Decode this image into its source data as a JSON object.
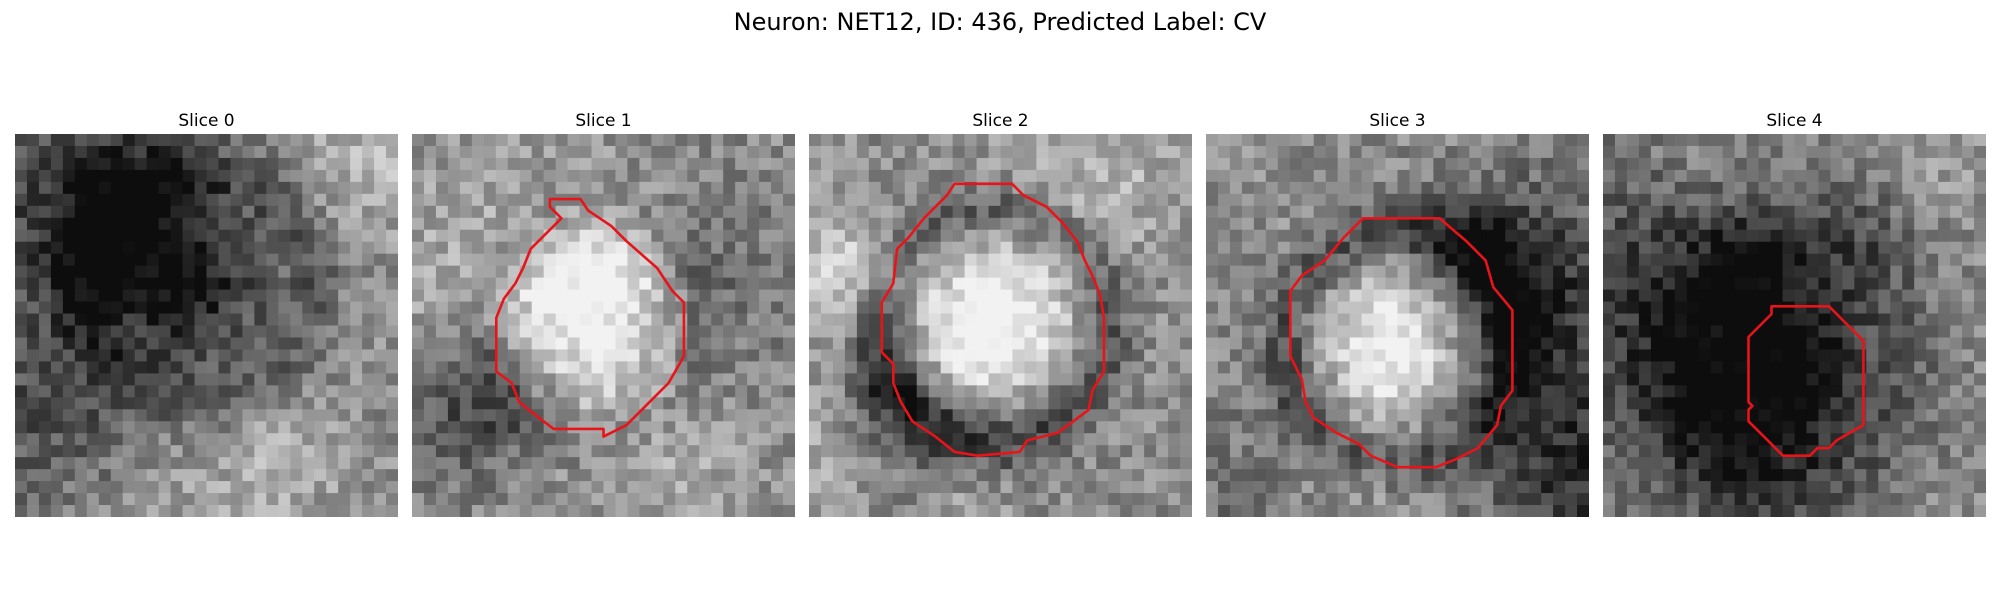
{
  "figure": {
    "title": "Neuron: NET12, ID: 436, Predicted Label: CV"
  },
  "colors": {
    "contour": "#e8141a"
  },
  "slices": [
    {
      "title": "Slice 0",
      "seed": 11,
      "center": [
        0.48,
        0.4
      ],
      "contrast": -0.35,
      "contour": []
    },
    {
      "title": "Slice 1",
      "seed": 23,
      "center": [
        0.47,
        0.5
      ],
      "contrast": 0.25,
      "contour": [
        [
          0.36,
          0.17
        ],
        [
          0.44,
          0.17
        ],
        [
          0.46,
          0.2
        ],
        [
          0.52,
          0.24
        ],
        [
          0.56,
          0.28
        ],
        [
          0.64,
          0.35
        ],
        [
          0.68,
          0.41
        ],
        [
          0.71,
          0.44
        ],
        [
          0.71,
          0.58
        ],
        [
          0.67,
          0.65
        ],
        [
          0.62,
          0.7
        ],
        [
          0.56,
          0.76
        ],
        [
          0.5,
          0.79
        ],
        [
          0.5,
          0.77
        ],
        [
          0.37,
          0.77
        ],
        [
          0.33,
          0.74
        ],
        [
          0.28,
          0.7
        ],
        [
          0.26,
          0.65
        ],
        [
          0.22,
          0.62
        ],
        [
          0.22,
          0.48
        ],
        [
          0.24,
          0.43
        ],
        [
          0.27,
          0.39
        ],
        [
          0.28,
          0.37
        ],
        [
          0.29,
          0.35
        ],
        [
          0.31,
          0.3
        ],
        [
          0.34,
          0.27
        ],
        [
          0.39,
          0.22
        ],
        [
          0.36,
          0.19
        ]
      ]
    },
    {
      "title": "Slice 2",
      "seed": 37,
      "center": [
        0.48,
        0.5
      ],
      "contrast": 0.55,
      "contour": [
        [
          0.38,
          0.13
        ],
        [
          0.53,
          0.13
        ],
        [
          0.56,
          0.16
        ],
        [
          0.62,
          0.19
        ],
        [
          0.66,
          0.23
        ],
        [
          0.7,
          0.28
        ],
        [
          0.72,
          0.33
        ],
        [
          0.74,
          0.37
        ],
        [
          0.76,
          0.42
        ],
        [
          0.77,
          0.48
        ],
        [
          0.77,
          0.62
        ],
        [
          0.74,
          0.67
        ],
        [
          0.73,
          0.72
        ],
        [
          0.69,
          0.75
        ],
        [
          0.65,
          0.78
        ],
        [
          0.57,
          0.8
        ],
        [
          0.55,
          0.83
        ],
        [
          0.44,
          0.84
        ],
        [
          0.38,
          0.83
        ],
        [
          0.33,
          0.79
        ],
        [
          0.27,
          0.75
        ],
        [
          0.24,
          0.7
        ],
        [
          0.22,
          0.65
        ],
        [
          0.22,
          0.6
        ],
        [
          0.19,
          0.57
        ],
        [
          0.19,
          0.44
        ],
        [
          0.22,
          0.39
        ],
        [
          0.23,
          0.3
        ],
        [
          0.26,
          0.27
        ],
        [
          0.3,
          0.22
        ],
        [
          0.33,
          0.19
        ],
        [
          0.36,
          0.16
        ]
      ]
    },
    {
      "title": "Slice 3",
      "seed": 41,
      "center": [
        0.51,
        0.55
      ],
      "contrast": 0.55,
      "contour": [
        [
          0.41,
          0.22
        ],
        [
          0.61,
          0.22
        ],
        [
          0.68,
          0.28
        ],
        [
          0.73,
          0.33
        ],
        [
          0.75,
          0.4
        ],
        [
          0.8,
          0.46
        ],
        [
          0.8,
          0.67
        ],
        [
          0.77,
          0.71
        ],
        [
          0.76,
          0.76
        ],
        [
          0.71,
          0.82
        ],
        [
          0.65,
          0.85
        ],
        [
          0.6,
          0.87
        ],
        [
          0.5,
          0.87
        ],
        [
          0.43,
          0.84
        ],
        [
          0.4,
          0.81
        ],
        [
          0.34,
          0.78
        ],
        [
          0.28,
          0.74
        ],
        [
          0.26,
          0.7
        ],
        [
          0.25,
          0.64
        ],
        [
          0.24,
          0.62
        ],
        [
          0.22,
          0.58
        ],
        [
          0.22,
          0.41
        ],
        [
          0.25,
          0.37
        ],
        [
          0.31,
          0.33
        ],
        [
          0.36,
          0.27
        ]
      ]
    },
    {
      "title": "Slice 4",
      "seed": 53,
      "center": [
        0.51,
        0.62
      ],
      "contrast": -0.15,
      "contour": [
        [
          0.44,
          0.45
        ],
        [
          0.59,
          0.45
        ],
        [
          0.64,
          0.5
        ],
        [
          0.68,
          0.54
        ],
        [
          0.68,
          0.76
        ],
        [
          0.61,
          0.8
        ],
        [
          0.59,
          0.82
        ],
        [
          0.56,
          0.82
        ],
        [
          0.54,
          0.84
        ],
        [
          0.47,
          0.84
        ],
        [
          0.42,
          0.79
        ],
        [
          0.38,
          0.75
        ],
        [
          0.38,
          0.72
        ],
        [
          0.39,
          0.71
        ],
        [
          0.38,
          0.7
        ],
        [
          0.38,
          0.53
        ],
        [
          0.44,
          0.47
        ]
      ]
    }
  ]
}
